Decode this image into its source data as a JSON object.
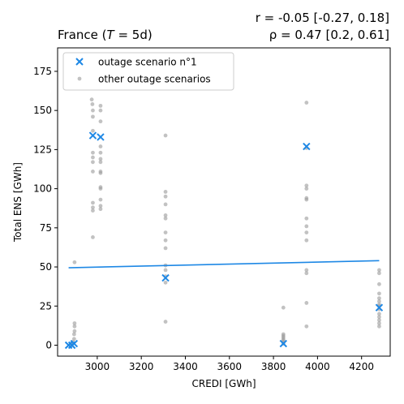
{
  "chart_data": {
    "type": "scatter",
    "title_left": "France (",
    "title_left_var": "T",
    "title_left_rest": " = 5d)",
    "title_right_line1": "r = -0.05 [-0.27, 0.18]",
    "title_right_line2": "ρ = 0.47 [0.2, 0.61]",
    "xlabel": "CREDI [GWh]",
    "ylabel": "Total ENS [GWh]",
    "xlim": [
      2820,
      4330
    ],
    "ylim": [
      -7,
      190
    ],
    "x_ticks": [
      3000,
      3200,
      3400,
      3600,
      3800,
      4000,
      4200
    ],
    "y_ticks": [
      0,
      25,
      50,
      75,
      100,
      125,
      150,
      175
    ],
    "grid": false,
    "legend_position": "top-left",
    "legend": [
      {
        "label": "outage scenario n°1",
        "marker": "x",
        "color": "#1e88e5"
      },
      {
        "label": "other outage scenarios",
        "marker": "dot",
        "color": "#999999"
      }
    ],
    "series": [
      {
        "name": "outage scenario n°1",
        "color": "#1e88e5",
        "marker": "x",
        "points": [
          [
            2870,
            0
          ],
          [
            2885,
            0
          ],
          [
            2895,
            1
          ],
          [
            2980,
            134
          ],
          [
            3015,
            133
          ],
          [
            3310,
            43
          ],
          [
            3845,
            1
          ],
          [
            3950,
            127
          ],
          [
            4280,
            24
          ]
        ]
      },
      {
        "name": "other outage scenarios",
        "color": "#999999",
        "marker": "dot",
        "points": [
          [
            2880,
            0
          ],
          [
            2885,
            1
          ],
          [
            2890,
            2
          ],
          [
            2895,
            4
          ],
          [
            2895,
            7
          ],
          [
            2897,
            9
          ],
          [
            2897,
            12
          ],
          [
            2897,
            14
          ],
          [
            2897,
            53
          ],
          [
            2975,
            157
          ],
          [
            2978,
            154
          ],
          [
            2980,
            150
          ],
          [
            2980,
            146
          ],
          [
            2980,
            137
          ],
          [
            2980,
            123
          ],
          [
            2980,
            120
          ],
          [
            2980,
            117
          ],
          [
            2980,
            111
          ],
          [
            2980,
            91
          ],
          [
            2980,
            88
          ],
          [
            2980,
            86
          ],
          [
            2980,
            69
          ],
          [
            3015,
            153
          ],
          [
            3015,
            150
          ],
          [
            3015,
            143
          ],
          [
            3015,
            127
          ],
          [
            3015,
            123
          ],
          [
            3015,
            119
          ],
          [
            3015,
            117
          ],
          [
            3015,
            111
          ],
          [
            3015,
            110
          ],
          [
            3015,
            101
          ],
          [
            3015,
            100
          ],
          [
            3015,
            93
          ],
          [
            3015,
            89
          ],
          [
            3015,
            87
          ],
          [
            3310,
            134
          ],
          [
            3310,
            98
          ],
          [
            3310,
            95
          ],
          [
            3310,
            90
          ],
          [
            3310,
            83
          ],
          [
            3310,
            81
          ],
          [
            3310,
            72
          ],
          [
            3310,
            67
          ],
          [
            3310,
            62
          ],
          [
            3310,
            51
          ],
          [
            3310,
            48
          ],
          [
            3310,
            44
          ],
          [
            3310,
            40
          ],
          [
            3310,
            15
          ],
          [
            3845,
            24
          ],
          [
            3845,
            7
          ],
          [
            3845,
            6
          ],
          [
            3845,
            5
          ],
          [
            3845,
            4
          ],
          [
            3845,
            3
          ],
          [
            3845,
            2
          ],
          [
            3845,
            1
          ],
          [
            3950,
            155
          ],
          [
            3950,
            126
          ],
          [
            3950,
            102
          ],
          [
            3950,
            100
          ],
          [
            3950,
            94
          ],
          [
            3950,
            93
          ],
          [
            3950,
            81
          ],
          [
            3950,
            76
          ],
          [
            3950,
            72
          ],
          [
            3950,
            67
          ],
          [
            3950,
            48
          ],
          [
            3950,
            46
          ],
          [
            3950,
            27
          ],
          [
            3950,
            12
          ],
          [
            4280,
            48
          ],
          [
            4280,
            46
          ],
          [
            4280,
            39
          ],
          [
            4280,
            33
          ],
          [
            4280,
            30
          ],
          [
            4280,
            28
          ],
          [
            4280,
            26
          ],
          [
            4280,
            25
          ],
          [
            4280,
            23
          ],
          [
            4280,
            20
          ],
          [
            4280,
            18
          ],
          [
            4280,
            16
          ],
          [
            4280,
            14
          ],
          [
            4280,
            12
          ]
        ]
      }
    ],
    "trend_line": {
      "color": "#1e88e5",
      "points": [
        [
          2870,
          49.5
        ],
        [
          4280,
          54
        ]
      ]
    }
  }
}
